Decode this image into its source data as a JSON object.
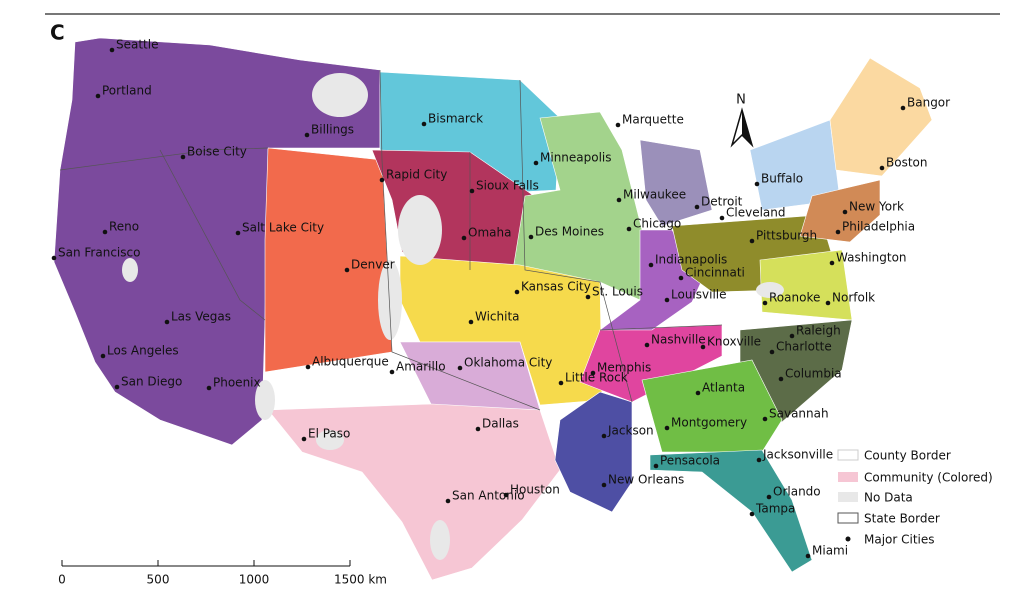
{
  "panel_label": "C",
  "north_label": "N",
  "cities": [
    "Seattle",
    "Portland",
    "Billings",
    "Boise City",
    "Bismarck",
    "Marquette",
    "Bangor",
    "Minneapolis",
    "Boston",
    "Rapid City",
    "Sioux Falls",
    "Milwaukee",
    "Detroit",
    "Buffalo",
    "Reno",
    "Salt Lake City",
    "Omaha",
    "Des Moines",
    "Chicago",
    "Cleveland",
    "New York",
    "Pittsburgh",
    "Philadelphia",
    "San Francisco",
    "Denver",
    "Indianapolis",
    "Washington",
    "Kansas City",
    "St. Louis",
    "Cincinnati",
    "Louisville",
    "Wichita",
    "Roanoke",
    "Norfolk",
    "Las Vegas",
    "Raleigh",
    "Los Angeles",
    "Albuquerque",
    "Amarillo",
    "Oklahoma City",
    "Nashville",
    "Knoxville",
    "Charlotte",
    "Memphis",
    "Little Rock",
    "San Diego",
    "Phoenix",
    "Atlanta",
    "Columbia",
    "Savannah",
    "Dallas",
    "Montgomery",
    "Jackson",
    "El Paso",
    "Jacksonville",
    "Pensacola",
    "Houston",
    "San Antonio",
    "New Orleans",
    "Orlando",
    "Tampa",
    "Miami"
  ],
  "legend": [
    "County Border",
    "Community (Colored)",
    "No Data",
    "State Border",
    "Major Cities"
  ],
  "scale_bar": [
    "0",
    "500",
    "1000",
    "1500 km"
  ]
}
